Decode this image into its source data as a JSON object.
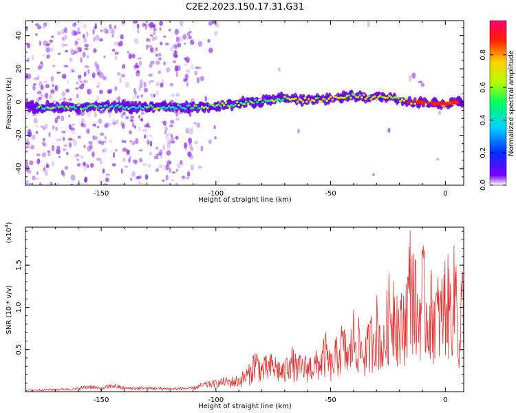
{
  "title": "C2E2.2023.150.17.31.G31",
  "colors": {
    "signal": "#e8302c",
    "axis": "#000000"
  },
  "chart_data": [
    {
      "type": "heatmap",
      "name": "spectrogram",
      "xlabel": "Height of straight line (km)",
      "ylabel": "Frequency (Hz)",
      "xlim": [
        -183,
        8
      ],
      "ylim": [
        -50,
        49
      ],
      "x_ticks": [
        -150,
        -100,
        -50,
        0
      ],
      "x_tick_labels": [
        "-150",
        "-100",
        "-50",
        "0"
      ],
      "y_ticks": [
        -40,
        -20,
        0,
        20,
        40
      ],
      "y_tick_labels": [
        "-40",
        "-20",
        "0",
        "20",
        "40"
      ],
      "ridge": {
        "x": [
          -183,
          -150,
          -120,
          -110,
          -100,
          -90,
          -80,
          -70,
          -60,
          -50,
          -45,
          -40,
          -35,
          -30,
          -25,
          -20,
          -15,
          -10,
          -5,
          0,
          5,
          8
        ],
        "freq_hz": [
          -3,
          -3,
          -3,
          -3,
          -2,
          -1,
          1,
          2,
          1,
          2,
          3,
          4,
          3,
          3,
          3,
          2,
          0,
          0,
          -1,
          -1,
          0,
          0
        ]
      },
      "colorbar": {
        "label": "Normalized spectral amplitude",
        "range": [
          0,
          1
        ],
        "ticks": [
          0.0,
          0.2,
          0.4,
          0.6,
          0.8
        ],
        "tick_labels": [
          "0.0",
          "0.2",
          "0.4",
          "0.6",
          "0.8"
        ],
        "colors": [
          "#ffffff",
          "#7a00ff",
          "#0030ff",
          "#00d0ff",
          "#00ff60",
          "#b0ff00",
          "#ffd000",
          "#ff2000",
          "#ff0070"
        ]
      }
    },
    {
      "type": "line",
      "name": "snr",
      "xlabel": "Height of straight line (km)",
      "ylabel": "SNR (10 * v/v)",
      "multiplier_label": "(x10",
      "multiplier_exp": "4",
      "xlim": [
        -183,
        8
      ],
      "ylim": [
        0,
        1.95
      ],
      "x_ticks": [
        -150,
        -100,
        -50,
        0
      ],
      "x_tick_labels": [
        "-150",
        "-100",
        "-50",
        "0"
      ],
      "y_ticks": [
        0.5,
        1.0,
        1.5
      ],
      "y_tick_labels": [
        "0.5",
        "1.0",
        "1.5"
      ],
      "series": [
        {
          "name": "SNR",
          "x": [
            -183,
            -170,
            -160,
            -155,
            -150,
            -145,
            -140,
            -130,
            -120,
            -110,
            -105,
            -100,
            -95,
            -90,
            -85,
            -83,
            -80,
            -75,
            -70,
            -68,
            -65,
            -60,
            -55,
            -52,
            -50,
            -45,
            -42,
            -40,
            -35,
            -30,
            -27,
            -25,
            -22,
            -20,
            -17,
            -15,
            -12,
            -10,
            -8,
            -5,
            -2,
            0,
            2,
            4,
            5,
            6,
            7,
            8
          ],
          "y": [
            0.02,
            0.03,
            0.04,
            0.08,
            0.04,
            0.09,
            0.05,
            0.05,
            0.04,
            0.05,
            0.1,
            0.12,
            0.15,
            0.18,
            0.3,
            0.5,
            0.35,
            0.42,
            0.3,
            0.55,
            0.38,
            0.4,
            0.45,
            0.62,
            0.4,
            0.75,
            0.55,
            0.9,
            0.6,
            1.05,
            0.65,
            1.2,
            1.45,
            0.95,
            1.3,
            1.9,
            1.15,
            1.6,
            1.25,
            1.3,
            1.2,
            1.5,
            1.35,
            1.55,
            1.9,
            0.45,
            1.4,
            1.35
          ]
        }
      ]
    }
  ]
}
